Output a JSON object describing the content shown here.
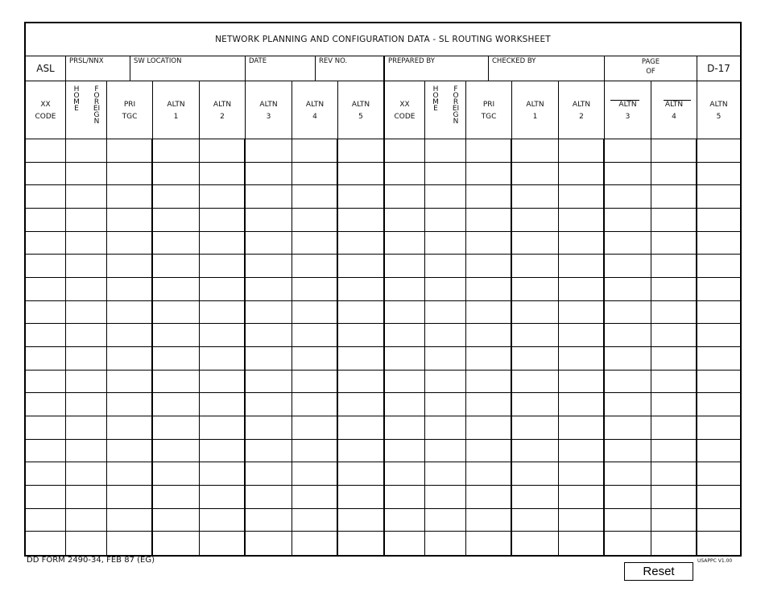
{
  "title": "NETWORK PLANNING AND CONFIGURATION DATA - SL ROUTING WORKSHEET",
  "info": {
    "asl": "ASL",
    "prsl_nnx": "PRSL/NNX",
    "sw_location": "SW LOCATION",
    "date": "DATE",
    "rev_no": "REV NO.",
    "prepared_by": "PREPARED BY",
    "checked_by": "CHECKED BY",
    "page": "PAGE",
    "of": "OF",
    "form_code": "D-17"
  },
  "columns": [
    {
      "l1": "XX",
      "l2": "CODE"
    },
    {
      "vertical": [
        "HOME",
        "FOREIGN"
      ]
    },
    {
      "l1": "PRI",
      "l2": "TGC"
    },
    {
      "l1": "ALTN",
      "l2": "1"
    },
    {
      "l1": "ALTN",
      "l2": "2"
    },
    {
      "l1": "ALTN",
      "l2": "3"
    },
    {
      "l1": "ALTN",
      "l2": "4"
    },
    {
      "l1": "ALTN",
      "l2": "5"
    },
    {
      "l1": "XX",
      "l2": "CODE"
    },
    {
      "vertical": [
        "HOME",
        "FOREIGN"
      ]
    },
    {
      "l1": "PRI",
      "l2": "TGC"
    },
    {
      "l1": "ALTN",
      "l2": "1"
    },
    {
      "l1": "ALTN",
      "l2": "2"
    },
    {
      "l1": "ALTN",
      "l2": "3"
    },
    {
      "l1": "ALTN",
      "l2": "4"
    },
    {
      "l1": "ALTN",
      "l2": "5"
    }
  ],
  "row_count": 18,
  "footer": {
    "form_id": "DD FORM 2490-34, FEB 87 (EG)",
    "version": "USAPPC V1.00",
    "reset_label": "Reset"
  }
}
